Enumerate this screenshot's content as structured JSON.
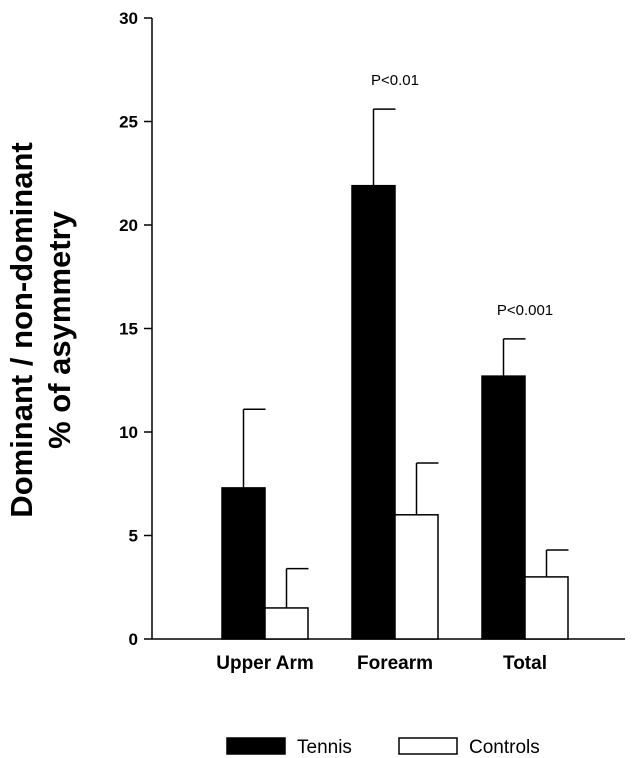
{
  "chart_data": {
    "type": "bar",
    "title": "",
    "xlabel": "",
    "ylabel_lines": [
      "Dominant / non-dominant",
      "% of asymmetry"
    ],
    "ylim": [
      0,
      30
    ],
    "yticks": [
      0,
      5,
      10,
      15,
      20,
      25,
      30
    ],
    "grid": false,
    "legend_position": "bottom",
    "categories": [
      "Upper Arm",
      "Forearm",
      "Total"
    ],
    "series": [
      {
        "name": "Tennis",
        "values": [
          7.3,
          21.9,
          12.7
        ],
        "errors": [
          3.8,
          3.7,
          1.8
        ],
        "fill": "#000000"
      },
      {
        "name": "Controls",
        "values": [
          1.5,
          6.0,
          3.0
        ],
        "errors": [
          1.9,
          2.5,
          1.3
        ],
        "fill": "#ffffff"
      }
    ],
    "annotations": [
      {
        "category": "Forearm",
        "text": "P<0.01"
      },
      {
        "category": "Total",
        "text": "P<0.001"
      }
    ]
  }
}
